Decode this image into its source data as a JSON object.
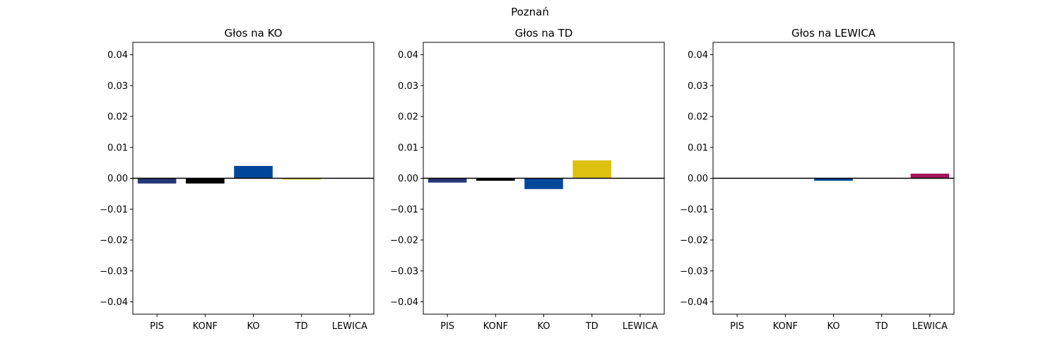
{
  "suptitle": "Poznań",
  "colors": {
    "PIS": "#263778",
    "KONF": "#000000",
    "KO": "#00479b",
    "TD": "#dcc20f",
    "LEWICA": "#a3175a"
  },
  "chart_data": [
    {
      "type": "bar",
      "title": "Głos na KO",
      "categories": [
        "PIS",
        "KONF",
        "KO",
        "TD",
        "LEWICA"
      ],
      "values": [
        -0.0017,
        -0.0017,
        0.004,
        -0.0004,
        0.0
      ],
      "ylim": [
        -0.044,
        0.044
      ],
      "yticks": [
        0.04,
        0.03,
        0.02,
        0.01,
        0.0,
        -0.01,
        -0.02,
        -0.03,
        -0.04
      ],
      "ytick_labels": [
        "0.04",
        "0.03",
        "0.02",
        "0.01",
        "0.00",
        "−0.01",
        "−0.02",
        "−0.03",
        "−0.04"
      ],
      "zero_line": true,
      "grid": false
    },
    {
      "type": "bar",
      "title": "Głos na TD",
      "categories": [
        "PIS",
        "KONF",
        "KO",
        "TD",
        "LEWICA"
      ],
      "values": [
        -0.0014,
        -0.0008,
        -0.0035,
        0.0058,
        0.0
      ],
      "ylim": [
        -0.044,
        0.044
      ],
      "yticks": [
        0.04,
        0.03,
        0.02,
        0.01,
        0.0,
        -0.01,
        -0.02,
        -0.03,
        -0.04
      ],
      "ytick_labels": [
        "0.04",
        "0.03",
        "0.02",
        "0.01",
        "0.00",
        "−0.01",
        "−0.02",
        "−0.03",
        "−0.04"
      ],
      "zero_line": true,
      "grid": false
    },
    {
      "type": "bar",
      "title": "Głos na LEWICA",
      "categories": [
        "PIS",
        "KONF",
        "KO",
        "TD",
        "LEWICA"
      ],
      "values": [
        0.0,
        0.0,
        -0.0008,
        0.0,
        0.0015
      ],
      "ylim": [
        -0.044,
        0.044
      ],
      "yticks": [
        0.04,
        0.03,
        0.02,
        0.01,
        0.0,
        -0.01,
        -0.02,
        -0.03,
        -0.04
      ],
      "ytick_labels": [
        "0.04",
        "0.03",
        "0.02",
        "0.01",
        "0.00",
        "−0.01",
        "−0.02",
        "−0.03",
        "−0.04"
      ],
      "zero_line": true,
      "grid": false
    }
  ]
}
